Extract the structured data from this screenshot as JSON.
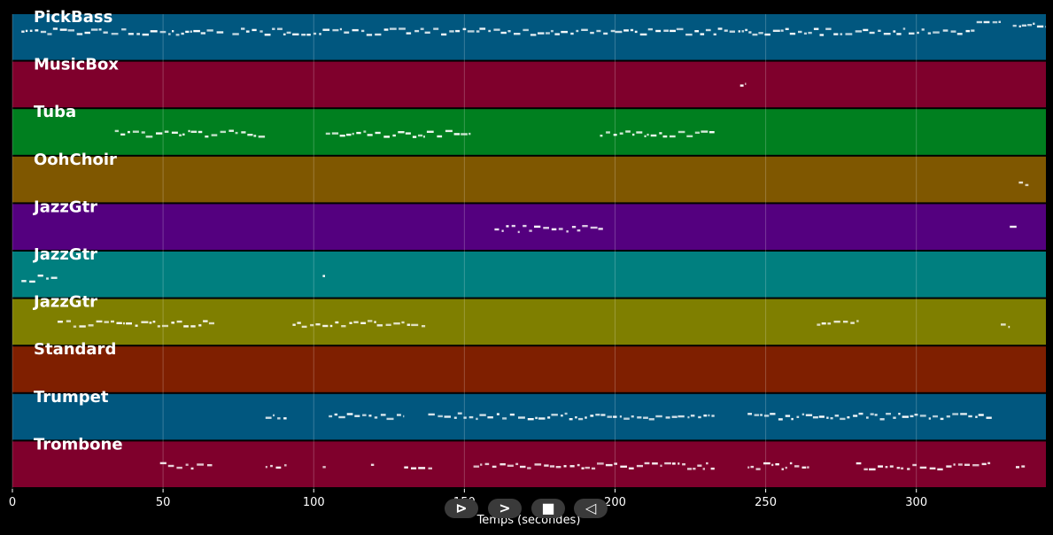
{
  "chart_data": {
    "type": "piano-roll",
    "xlabel": "Temps (secondes)",
    "xlim": [
      0,
      343
    ],
    "x_ticks": [
      0,
      50,
      100,
      150,
      200,
      250,
      300
    ],
    "grid": true,
    "tracks": [
      {
        "name": "PickBass",
        "color": "#01577f",
        "segments": [
          [
            3,
            70,
            0.35
          ],
          [
            73,
            155,
            0.35
          ],
          [
            155,
            200,
            0.35
          ],
          [
            200,
            255,
            0.35
          ],
          [
            255,
            320,
            0.35
          ],
          [
            320,
            328,
            0.2
          ],
          [
            332,
            343,
            0.2
          ]
        ]
      },
      {
        "name": "MusicBox",
        "color": "#7f002c",
        "segments": [
          [
            241.5,
            243.5,
            0.45
          ]
        ]
      },
      {
        "name": "Tuba",
        "color": "#007f1f",
        "segments": [
          [
            34,
            84,
            0.5
          ],
          [
            104,
            153,
            0.5
          ],
          [
            195,
            233,
            0.5
          ]
        ]
      },
      {
        "name": "OohChoir",
        "color": "#7f5700",
        "segments": [
          [
            334,
            338,
            0.55
          ]
        ]
      },
      {
        "name": "JazzGtr",
        "color": "#54007f",
        "segments": [
          [
            160,
            196,
            0.5
          ],
          [
            331,
            334,
            0.5
          ]
        ]
      },
      {
        "name": "JazzGtr",
        "color": "#007f7f",
        "segments": [
          [
            3,
            15,
            0.55
          ],
          [
            103,
            104,
            0.55
          ]
        ]
      },
      {
        "name": "JazzGtr",
        "color": "#7f7f00",
        "segments": [
          [
            15,
            67,
            0.5
          ],
          [
            93,
            137,
            0.5
          ],
          [
            267,
            281,
            0.5
          ],
          [
            328,
            331,
            0.5
          ]
        ]
      },
      {
        "name": "Standard",
        "color": "#7f1f00",
        "segments": []
      },
      {
        "name": "Trumpet",
        "color": "#01577f",
        "segments": [
          [
            84,
            91,
            0.45
          ],
          [
            105,
            130,
            0.45
          ],
          [
            138,
            155,
            0.45
          ],
          [
            155,
            233,
            0.45
          ],
          [
            244,
            310,
            0.45
          ],
          [
            310,
            325,
            0.45
          ]
        ]
      },
      {
        "name": "Trombone",
        "color": "#7f002c",
        "segments": [
          [
            49,
            67,
            0.5
          ],
          [
            84,
            91,
            0.5
          ],
          [
            103,
            104,
            0.5
          ],
          [
            119,
            120,
            0.5
          ],
          [
            130,
            140,
            0.5
          ],
          [
            153,
            233,
            0.5
          ],
          [
            244,
            265,
            0.5
          ],
          [
            280,
            325,
            0.5
          ],
          [
            333,
            336,
            0.5
          ]
        ]
      }
    ]
  },
  "controls": {
    "play_label": "⊳",
    "forward_label": ">",
    "stop_label": "■",
    "rewind_label": "◁"
  }
}
